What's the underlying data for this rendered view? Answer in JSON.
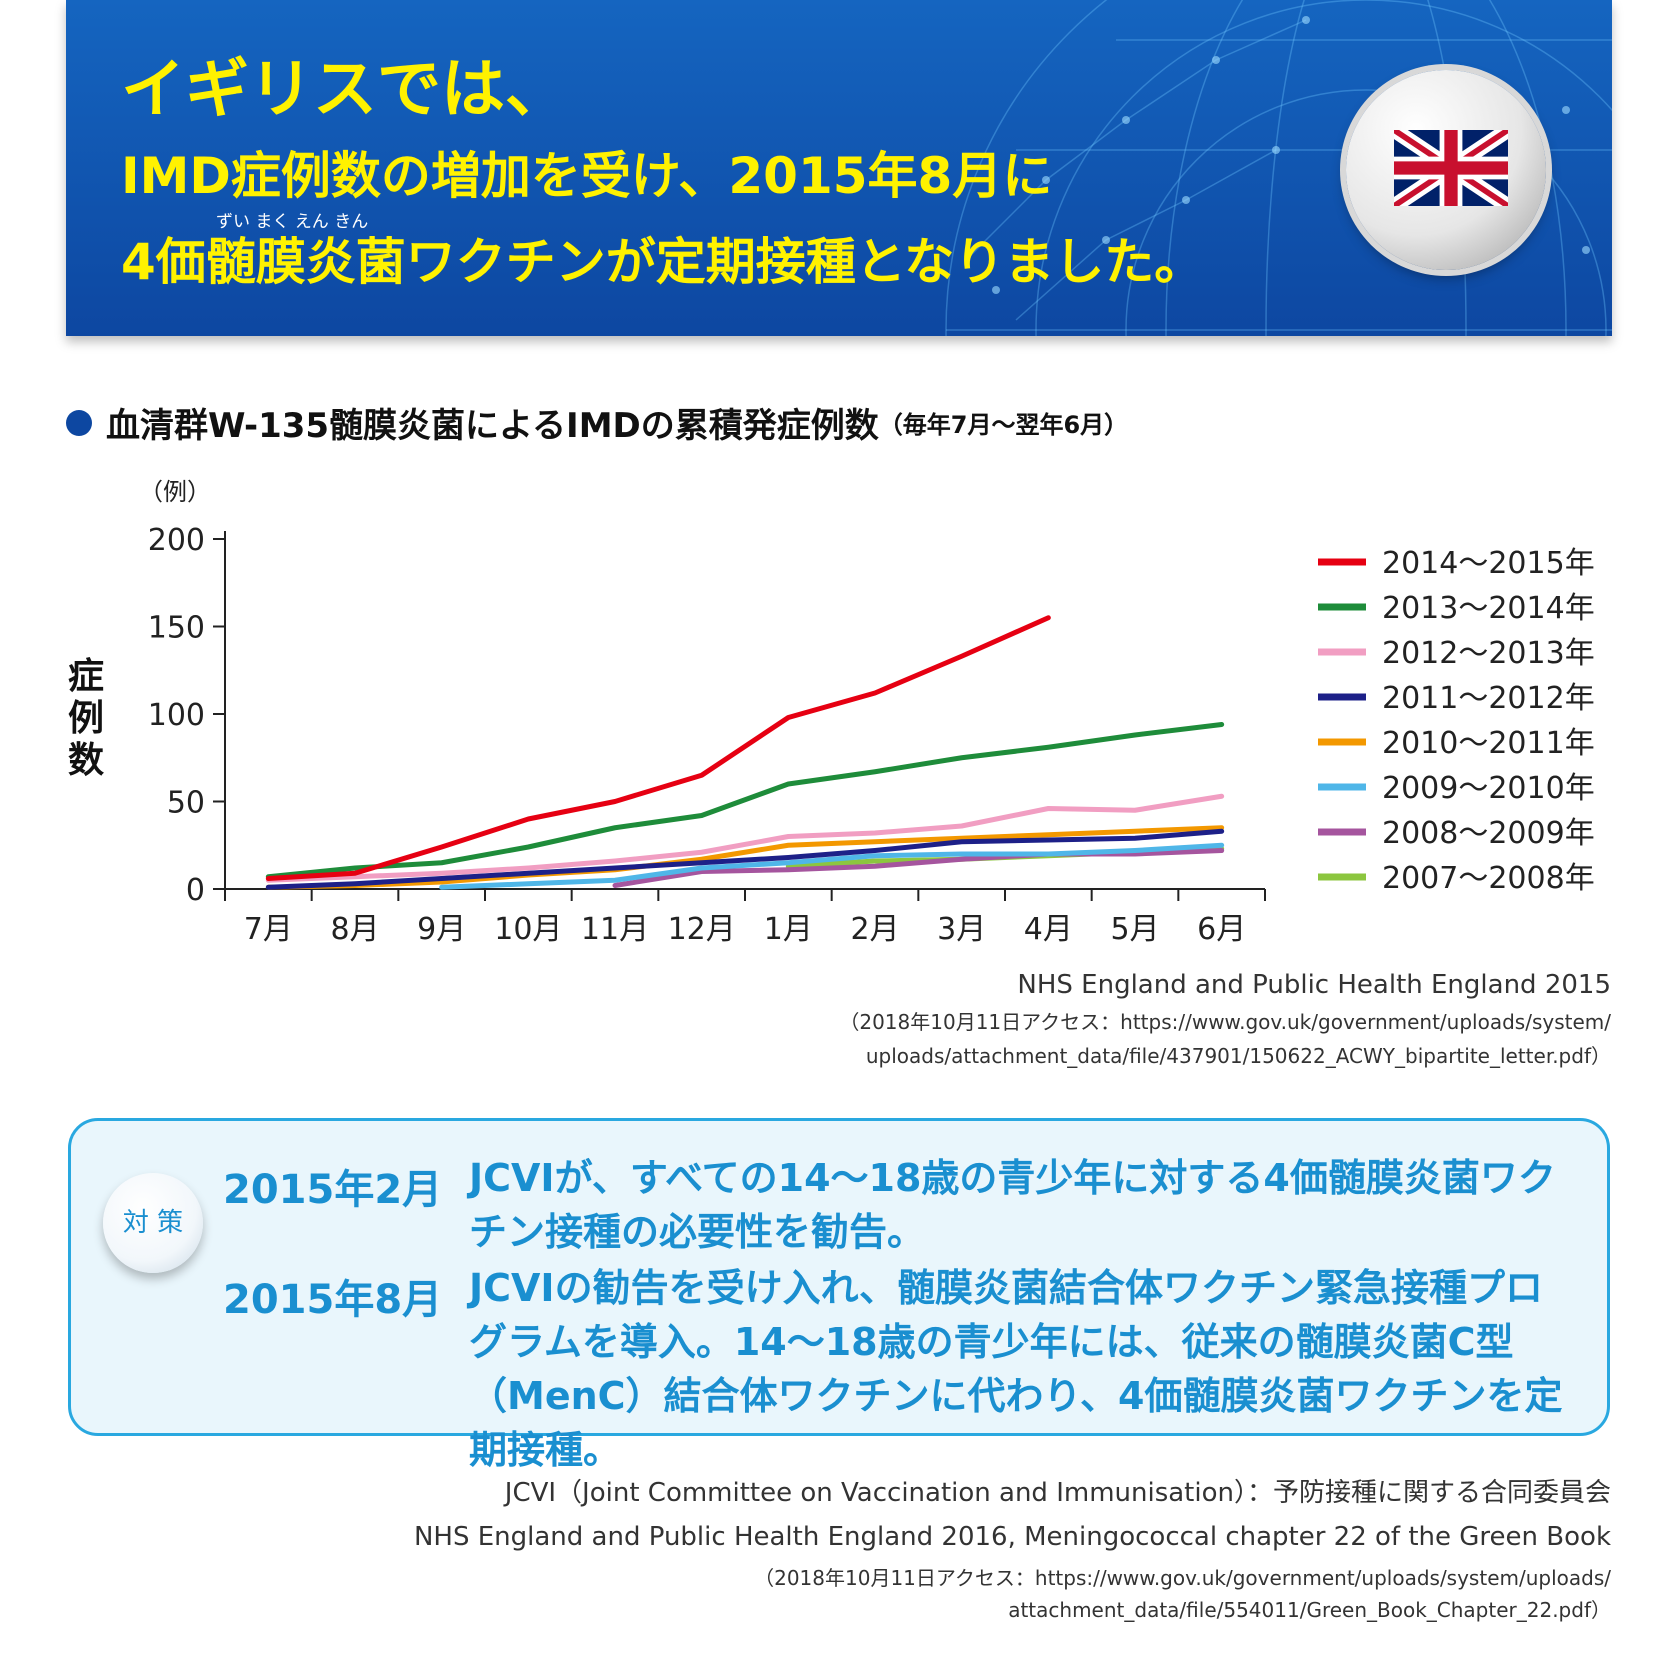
{
  "banner": {
    "line1": "イギリスでは、",
    "line2": "IMD症例数の増加を受け、2015年8月に",
    "line3": "4価髄膜炎菌ワクチンが定期接種となりました。",
    "ruby": "ずい まく えん きん",
    "flag_icon": "uk-flag-icon",
    "color_text": "#fff200",
    "color_bg": "#0d47a1"
  },
  "chart_heading": {
    "title": "血清群W-135髄膜炎菌によるIMDの累積発症例数",
    "subtitle": "（毎年7月～翌年6月）"
  },
  "chart_data": {
    "type": "line",
    "title": "血清群W-135髄膜炎菌によるIMDの累積発症例数",
    "ylabel": "症例数",
    "yunit": "（例）",
    "ylim": [
      0,
      200
    ],
    "yticks": [
      0,
      50,
      100,
      150,
      200
    ],
    "categories": [
      "7月",
      "8月",
      "9月",
      "10月",
      "11月",
      "12月",
      "1月",
      "2月",
      "3月",
      "4月",
      "5月",
      "6月"
    ],
    "legend_position": "right",
    "series": [
      {
        "name": "2014～2015年",
        "color": "#e60012",
        "values": [
          6,
          9,
          24,
          40,
          50,
          65,
          98,
          112,
          133,
          155,
          null,
          null
        ]
      },
      {
        "name": "2013～2014年",
        "color": "#1e8c3a",
        "values": [
          7,
          12,
          15,
          24,
          35,
          42,
          60,
          67,
          75,
          81,
          88,
          94
        ]
      },
      {
        "name": "2012～2013年",
        "color": "#f19ec2",
        "values": [
          5,
          7,
          9,
          12,
          16,
          21,
          30,
          32,
          36,
          46,
          45,
          53
        ]
      },
      {
        "name": "2011～2012年",
        "color": "#1d2088",
        "values": [
          1,
          3,
          6,
          9,
          12,
          15,
          18,
          22,
          27,
          28,
          29,
          33
        ]
      },
      {
        "name": "2010～2011年",
        "color": "#f39800",
        "values": [
          1,
          2,
          4,
          8,
          11,
          17,
          25,
          27,
          29,
          31,
          33,
          35
        ]
      },
      {
        "name": "2009～2010年",
        "color": "#4fb6e8",
        "values": [
          null,
          null,
          1,
          3,
          5,
          12,
          15,
          19,
          20,
          20,
          22,
          25
        ]
      },
      {
        "name": "2008～2009年",
        "color": "#a5559e",
        "values": [
          null,
          null,
          null,
          null,
          2,
          10,
          11,
          13,
          17,
          20,
          20,
          22
        ]
      },
      {
        "name": "2007～2008年",
        "color": "#8cc63f",
        "values": [
          null,
          null,
          null,
          null,
          null,
          null,
          13,
          16,
          17,
          19,
          21,
          23
        ]
      }
    ]
  },
  "chart_source": {
    "line1": "NHS England and Public Health England 2015",
    "line2": "（2018年10月11日アクセス：https://www.gov.uk/government/uploads/system/",
    "line3": "uploads/attachment_data/file/437901/150622_ACWY_bipartite_letter.pdf）"
  },
  "measures": {
    "badge": "対 策",
    "items": [
      {
        "date": "2015年2月",
        "text": "JCVIが、すべての14～18歳の青少年に対する4価髄膜炎菌ワクチン接種の必要性を勧告。"
      },
      {
        "date": "2015年8月",
        "text": "JCVIの勧告を受け入れ、髄膜炎菌結合体ワクチン緊急接種プログラムを導入。14～18歳の青少年には、従来の髄膜炎菌C型（MenC）結合体ワクチンに代わり、4価髄膜炎菌ワクチンを定期接種。"
      }
    ],
    "color": "#1a8fd0"
  },
  "notes": {
    "jcvi": "JCVI（Joint Committee on Vaccination and Immunisation）：予防接種に関する合同委員会",
    "ref1": "NHS England and Public Health England 2016, Meningococcal chapter 22 of the Green Book",
    "ref2": "（2018年10月11日アクセス：https://www.gov.uk/government/uploads/system/uploads/",
    "ref3": "attachment_data/file/554011/Green_Book_Chapter_22.pdf）"
  }
}
